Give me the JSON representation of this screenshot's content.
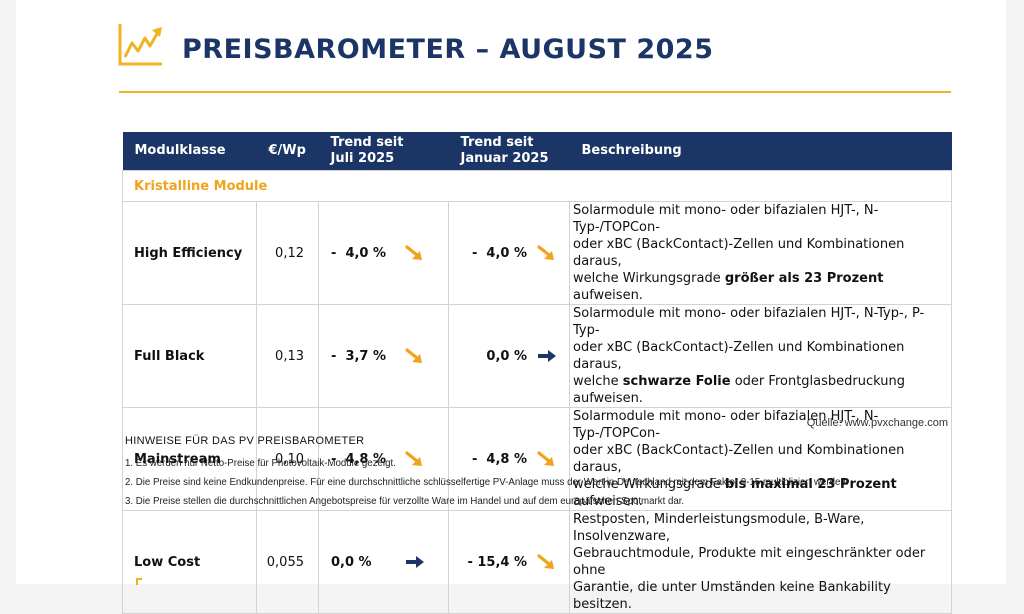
{
  "header": {
    "title": "PREISBAROMETER – AUGUST 2025",
    "colors": {
      "navy": "#1b3566",
      "accent": "#f0b323"
    },
    "icon": "rising-chart-icon"
  },
  "table": {
    "columns": {
      "class": "Modulklasse",
      "price": "€/Wp",
      "trend1_line1": "Trend seit",
      "trend1_line2": "Juli 2025",
      "trend2_line1": "Trend seit",
      "trend2_line2": "Januar 2025",
      "desc": "Beschreibung"
    },
    "section": "Kristalline Module",
    "rows": [
      {
        "name": "High Efficiency",
        "price": "0,12",
        "t1": "-  4,0 %",
        "t1_dir": "down",
        "t2": "-  4,0 %",
        "t2_dir": "down",
        "d1": "Solarmodule mit mono- oder bifazialen HJT-, N-Typ-/TOPCon-",
        "d2": "oder xBC (BackContact)-Zellen und Kombinationen daraus,",
        "d3a": "welche Wirkungsgrade ",
        "d3b": "größer als 23 Prozent",
        "d3c": " aufweisen."
      },
      {
        "name": "Full Black",
        "price": "0,13",
        "t1": "-  3,7 %",
        "t1_dir": "down",
        "t2": "0,0 %",
        "t2_dir": "flat",
        "d1": "Solarmodule mit mono- oder bifazialen HJT-, N-Typ-, P-Typ-",
        "d2": "oder xBC (BackContact)-Zellen und Kombinationen daraus,",
        "d3a": "welche ",
        "d3b": "schwarze Folie",
        "d3c": " oder Frontglasbedruckung aufweisen."
      },
      {
        "name": "Mainstream",
        "price": "0,10",
        "t1": "-  4,8 %",
        "t1_dir": "down",
        "t2": "-  4,8 %",
        "t2_dir": "down",
        "d1": "Solarmodule mit mono- oder bifazialen HJT-, N-Typ-/TOPCon-",
        "d2": "oder xBC (BackContact)-Zellen und Kombinationen daraus,",
        "d3a": "welche Wirkungsgrade ",
        "d3b": "bis maximal 23 Prozent",
        "d3c": " aufweisen."
      },
      {
        "name": "Low Cost",
        "price": "0,055",
        "t1": "0,0 %",
        "t1_dir": "flat",
        "t2": "- 15,4 %",
        "t2_dir": "down",
        "d1": "Restposten, Minderleistungsmodule, B-Ware, Insolvenzware,",
        "d2": "Gebrauchtmodule, Produkte mit eingeschränkter oder ohne",
        "d3a": "Garantie, die unter Umständen keine Bankability besitzen.",
        "d3b": "",
        "d3c": ""
      }
    ]
  },
  "source": "Quelle: www.pvxchange.com",
  "notes": {
    "heading": "HINWEISE FÜR DAS PV PREISBAROMETER",
    "items": [
      "1.  Es werden nur Netto-Preise für Photovoltaik-Module gezeigt.",
      "2. Die Preise sind keine Endkundenpreise. Für eine durchschnittliche schlüsselfertige PV-Anlage muss der Wert in Deutschland mit dem Faktor 9-15 multipliziert werden.",
      "3. Die Preise stellen die durchschnittlichen Angebotspreise für verzollte Ware im Handel und auf dem europäischen Spotmarkt dar."
    ]
  }
}
